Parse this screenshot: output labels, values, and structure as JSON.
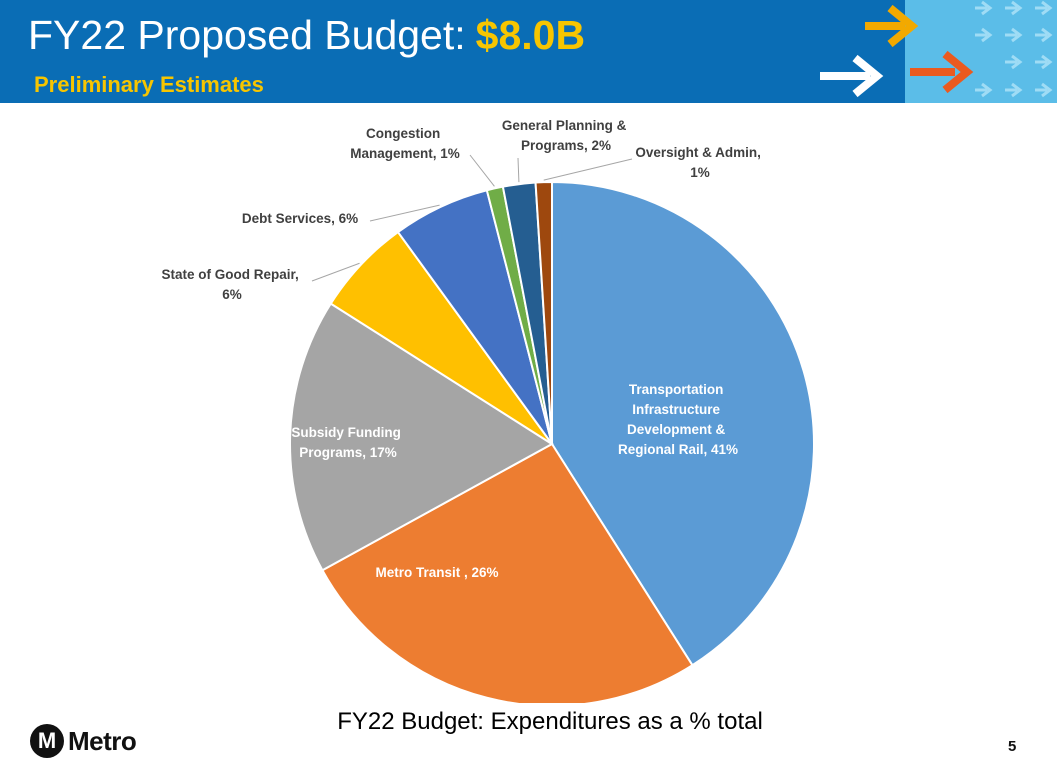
{
  "header": {
    "title": "FY22 Proposed Budget:",
    "highlight": "$8.0B",
    "subtitle": "Preliminary Estimates"
  },
  "chart_data": {
    "type": "pie",
    "labels": [
      "Transportation Infrastructure Development & Regional Rail, 41%",
      "Metro Transit , 26%",
      "Subsidy Funding Programs, 17%",
      "State of Good Repair, 6%",
      "Debt Services, 6%",
      "Congestion Management, 1%",
      "General Planning & Programs, 2%",
      "Oversight & Admin, 1%"
    ],
    "values": [
      41,
      26,
      17,
      6,
      6,
      1,
      2,
      1
    ],
    "colors": [
      "#5b9bd5",
      "#ed7d31",
      "#a5a5a5",
      "#ffc000",
      "#4472c4",
      "#70ad47",
      "#255e91",
      "#9e480e"
    ],
    "caption": "FY22 Budget: Expenditures as a % total"
  },
  "footer": {
    "logo": "Metro",
    "logo_mark": "M",
    "page_number": "5"
  }
}
